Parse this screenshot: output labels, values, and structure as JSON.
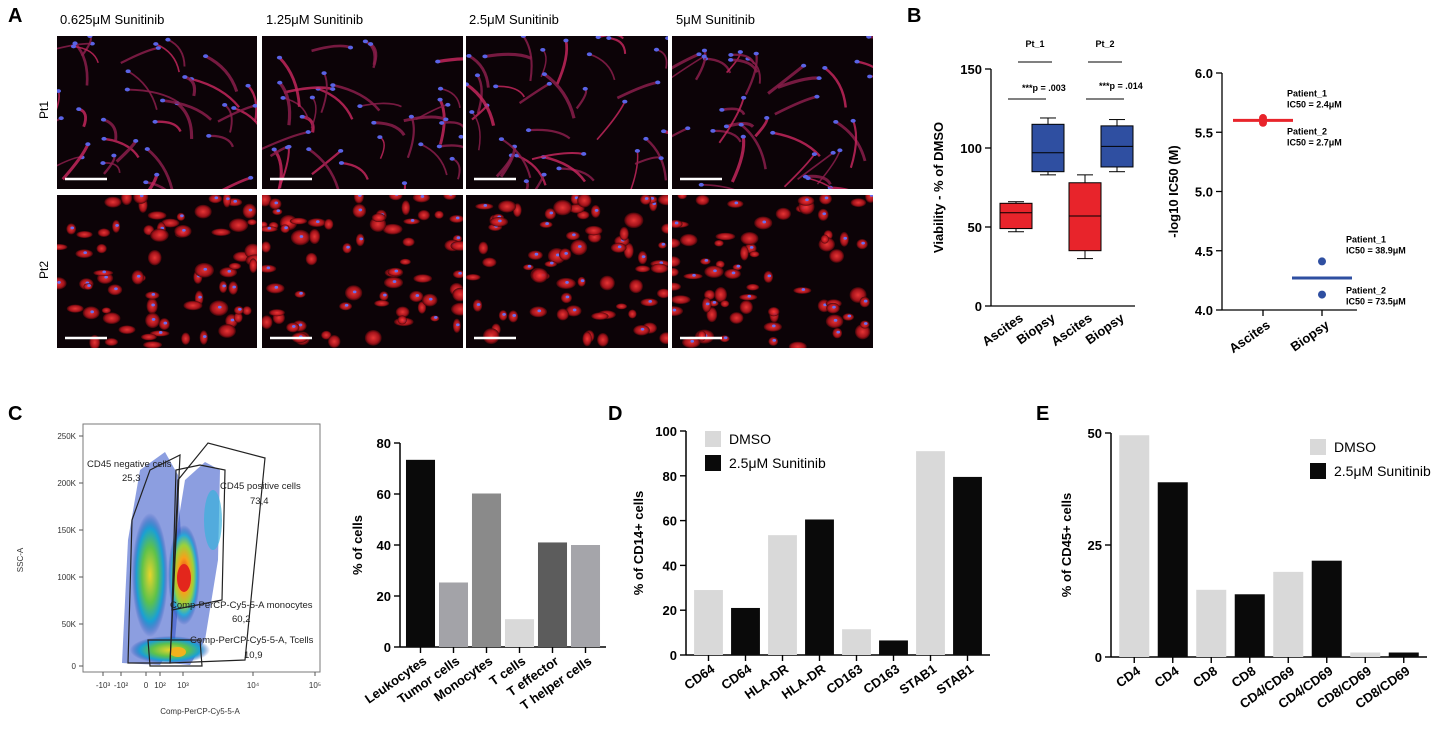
{
  "panel_labels": {
    "a": "A",
    "b": "B",
    "c": "C",
    "d": "D",
    "e": "E"
  },
  "panel_a": {
    "column_titles": [
      "0.625μM Sunitinib",
      "1.25μM Sunitinib",
      "2.5μM Sunitinib",
      "5μM Sunitinib"
    ],
    "row_labels": [
      "Pt1",
      "Pt2"
    ]
  },
  "panel_c_flow": {
    "y_axis_label": "SSC-A",
    "x_axis_label": "Comp-PerCP-Cy5-5-A",
    "y_ticks": [
      "250K",
      "200K",
      "150K",
      "100K",
      "50K",
      "0"
    ],
    "x_ticks": [
      "-10³",
      "-10²",
      "0",
      "10²",
      "10³",
      "10⁴",
      "10⁵"
    ],
    "gates": [
      {
        "name": "CD45 negative cells",
        "value": "25,3"
      },
      {
        "name": "CD45 positive cells",
        "value": "73,4"
      },
      {
        "name": "Comp-PerCP-Cy5-5-A monocytes",
        "value": "60,2"
      },
      {
        "name": "Comp-PerCP-Cy5-5-A, Tcells",
        "value": "10,9"
      }
    ]
  },
  "chart_data": [
    {
      "type": "box",
      "panel": "B-left",
      "ylabel": "Viability - % of DMSO",
      "ylim": [
        0,
        150
      ],
      "yticks": [
        0,
        50,
        100,
        150
      ],
      "categories": [
        "Ascites",
        "Biopsy",
        "Ascites",
        "Biopsy"
      ],
      "groups": [
        "Pt_1",
        "Pt_2"
      ],
      "boxes": [
        {
          "category": "Ascites",
          "group": "Pt_1",
          "color": "#e8242b",
          "min": 47,
          "q1": 49,
          "median": 59,
          "q3": 65,
          "max": 66
        },
        {
          "category": "Biopsy",
          "group": "Pt_1",
          "color": "#2f4fa1",
          "min": 83,
          "q1": 85,
          "median": 97,
          "q3": 115,
          "max": 119
        },
        {
          "category": "Ascites",
          "group": "Pt_2",
          "color": "#e8242b",
          "min": 30,
          "q1": 35,
          "median": 57,
          "q3": 78,
          "max": 83
        },
        {
          "category": "Biopsy",
          "group": "Pt_2",
          "color": "#2f4fa1",
          "min": 85,
          "q1": 88,
          "median": 101,
          "q3": 114,
          "max": 118
        }
      ],
      "annotations": [
        "***p = .003",
        "***p = .014"
      ]
    },
    {
      "type": "scatter",
      "panel": "B-right",
      "ylabel": "-log10 IC50 (M)",
      "ylim": [
        4.0,
        6.0
      ],
      "yticks": [
        "4.0",
        "4.5",
        "5.0",
        "5.5",
        "6.0"
      ],
      "categories": [
        "Ascites",
        "Biopsy"
      ],
      "points": [
        {
          "category": "Ascites",
          "y": 5.62,
          "color": "#e8242b"
        },
        {
          "category": "Ascites",
          "y": 5.58,
          "color": "#e8242b"
        },
        {
          "category": "Biopsy",
          "y": 4.41,
          "color": "#2f4fa1"
        },
        {
          "category": "Biopsy",
          "y": 4.13,
          "color": "#2f4fa1"
        }
      ],
      "means": [
        {
          "category": "Ascites",
          "y": 5.6,
          "color": "#e8242b"
        },
        {
          "category": "Biopsy",
          "y": 4.27,
          "color": "#2f4fa1"
        }
      ],
      "annotations": [
        {
          "category": "Ascites",
          "y": 5.8,
          "line1": "Patient_1",
          "line2": "IC50 = 2.4μM"
        },
        {
          "category": "Ascites",
          "y": 5.48,
          "line1": "Patient_2",
          "line2": "IC50 = 2.7μM"
        },
        {
          "category": "Biopsy",
          "y": 4.57,
          "line1": "Patient_1",
          "line2": "IC50 = 38.9μM"
        },
        {
          "category": "Biopsy",
          "y": 4.14,
          "line1": "Patient_2",
          "line2": "IC50 = 73.5μM"
        }
      ]
    },
    {
      "type": "bar",
      "panel": "C-right",
      "ylabel": "% of cells",
      "ylim": [
        0,
        80
      ],
      "yticks": [
        0,
        20,
        40,
        60,
        80
      ],
      "categories": [
        "Leukocytes",
        "Tumor cells",
        "Monocytes",
        "T cells",
        "T effector",
        "T helper cells"
      ],
      "values": [
        73.4,
        25.3,
        60.2,
        10.9,
        41,
        40
      ],
      "colors": [
        "#0a0a0a",
        "#a3a3a8",
        "#8a8a8a",
        "#d9d9d9",
        "#5c5c5c",
        "#a5a5aa"
      ]
    },
    {
      "type": "bar",
      "panel": "D",
      "ylabel": "% of CD14+ cells",
      "ylim": [
        0,
        100
      ],
      "yticks": [
        0,
        20,
        40,
        60,
        80,
        100
      ],
      "categories": [
        "CD64",
        "CD64",
        "HLA-DR",
        "HLA-DR",
        "CD163",
        "CD163",
        "STAB1",
        "STAB1"
      ],
      "values": [
        29,
        21,
        53.5,
        60.5,
        11.5,
        6.5,
        91,
        79.5
      ],
      "series_of_bar": [
        "DMSO",
        "2.5μM Sunitinib",
        "DMSO",
        "2.5μM Sunitinib",
        "DMSO",
        "2.5μM Sunitinib",
        "DMSO",
        "2.5μM Sunitinib"
      ],
      "legend": [
        {
          "name": "DMSO",
          "color": "#d9d9d9"
        },
        {
          "name": "2.5μM Sunitinib",
          "color": "#0a0a0a"
        }
      ]
    },
    {
      "type": "bar",
      "panel": "E",
      "ylabel": "% of CD45+ cells",
      "ylim": [
        0,
        50
      ],
      "yticks": [
        0,
        25,
        50
      ],
      "categories": [
        "CD4",
        "CD4",
        "CD8",
        "CD8",
        "CD4/CD69",
        "CD4/CD69",
        "CD8/CD69",
        "CD8/CD69"
      ],
      "values": [
        49.5,
        39,
        15,
        14,
        19,
        21.5,
        1,
        1
      ],
      "series_of_bar": [
        "DMSO",
        "2.5μM Sunitinib",
        "DMSO",
        "2.5μM Sunitinib",
        "DMSO",
        "2.5μM Sunitinib",
        "DMSO",
        "2.5μM Sunitinib"
      ],
      "legend": [
        {
          "name": "DMSO",
          "color": "#d9d9d9"
        },
        {
          "name": "2.5μM Sunitinib",
          "color": "#0a0a0a"
        }
      ]
    }
  ]
}
